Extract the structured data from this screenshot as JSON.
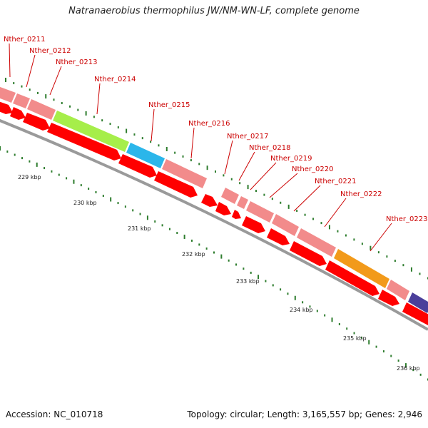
{
  "title": "Natranaerobius thermophilus JW/NM-WN-LF, complete genome",
  "accession": "Accession: NC_010718",
  "summary": "Topology: circular; Length: 3,165,557 bp; Genes: 2,946",
  "colors": {
    "gene": "#ff0000",
    "cds": "#f28b8b",
    "backbone": "#8a8a8a",
    "tick": "#2e7d2e",
    "label": "#cc0000"
  },
  "genes": [
    {
      "name": "Nther_0211"
    },
    {
      "name": "Nther_0212"
    },
    {
      "name": "Nther_0213"
    },
    {
      "name": "Nther_0214"
    },
    {
      "name": "Nther_0215"
    },
    {
      "name": "Nther_0216"
    },
    {
      "name": "Nther_0217"
    },
    {
      "name": "Nther_0218"
    },
    {
      "name": "Nther_0219"
    },
    {
      "name": "Nther_0220"
    },
    {
      "name": "Nther_0221"
    },
    {
      "name": "Nther_0222"
    },
    {
      "name": "Nther_0223"
    }
  ],
  "ticks": [
    "229 kbp",
    "230 kbp",
    "231 kbp",
    "232 kbp",
    "233 kbp",
    "234 kbp",
    "235 kbp",
    "236 kbp"
  ]
}
